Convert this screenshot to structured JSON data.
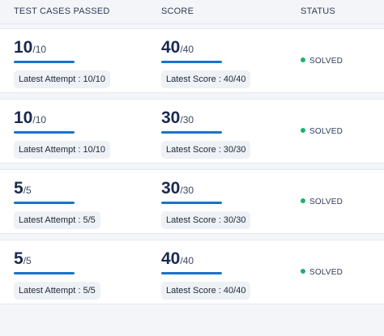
{
  "header": {
    "tests_label": "TEST CASES PASSED",
    "score_label": "SCORE",
    "status_label": "STATUS"
  },
  "colors": {
    "bar": "#1a73c9",
    "solved_dot": "#1db16f"
  },
  "rows": [
    {
      "tests_passed": "10",
      "tests_total": "/10",
      "latest_attempt": "Latest Attempt : 10/10",
      "score": "40",
      "score_total": "/40",
      "latest_score": "Latest Score : 40/40",
      "status": "SOLVED"
    },
    {
      "tests_passed": "10",
      "tests_total": "/10",
      "latest_attempt": "Latest Attempt : 10/10",
      "score": "30",
      "score_total": "/30",
      "latest_score": "Latest Score : 30/30",
      "status": "SOLVED"
    },
    {
      "tests_passed": "5",
      "tests_total": "/5",
      "latest_attempt": "Latest Attempt : 5/5",
      "score": "30",
      "score_total": "/30",
      "latest_score": "Latest Score : 30/30",
      "status": "SOLVED"
    },
    {
      "tests_passed": "5",
      "tests_total": "/5",
      "latest_attempt": "Latest Attempt : 5/5",
      "score": "40",
      "score_total": "/40",
      "latest_score": "Latest Score : 40/40",
      "status": "SOLVED"
    }
  ]
}
